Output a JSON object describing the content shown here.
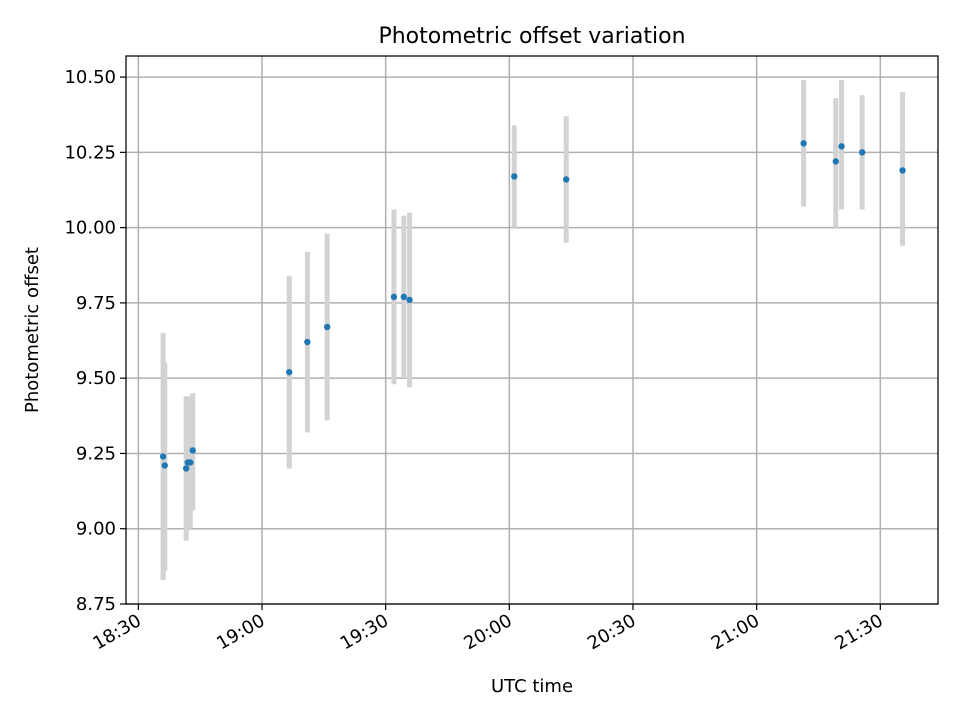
{
  "chart_data": {
    "type": "scatter",
    "title": "Photometric offset variation",
    "xlabel": "UTC time",
    "ylabel": "Photometric offset",
    "x_tick_labels": [
      "18:30",
      "19:00",
      "19:30",
      "20:00",
      "20:30",
      "21:00",
      "21:30"
    ],
    "y_tick_labels": [
      "8.75",
      "9.00",
      "9.25",
      "9.50",
      "9.75",
      "10.00",
      "10.25",
      "10.50"
    ],
    "xlim": [
      "18:27:00",
      "21:44:00"
    ],
    "ylim": [
      8.75,
      10.57
    ],
    "grid": true,
    "colors": {
      "points": "#1f77b4",
      "error_bars": "#d3d3d3",
      "grid": "#b0b0b0"
    },
    "points": [
      {
        "time": "18:36:00",
        "y": 9.24,
        "err_low": 8.83,
        "err_high": 9.65
      },
      {
        "time": "18:36:24",
        "y": 9.21,
        "err_low": 8.86,
        "err_high": 9.55
      },
      {
        "time": "18:41:36",
        "y": 9.2,
        "err_low": 8.96,
        "err_high": 9.44
      },
      {
        "time": "18:42:00",
        "y": 9.22,
        "err_low": 9.01,
        "err_high": 9.44
      },
      {
        "time": "18:42:36",
        "y": 9.22,
        "err_low": 9.0,
        "err_high": 9.44
      },
      {
        "time": "18:43:12",
        "y": 9.26,
        "err_low": 9.06,
        "err_high": 9.45
      },
      {
        "time": "19:06:36",
        "y": 9.52,
        "err_low": 9.2,
        "err_high": 9.84
      },
      {
        "time": "19:11:00",
        "y": 9.62,
        "err_low": 9.32,
        "err_high": 9.92
      },
      {
        "time": "19:15:48",
        "y": 9.67,
        "err_low": 9.36,
        "err_high": 9.98
      },
      {
        "time": "19:32:00",
        "y": 9.77,
        "err_low": 9.48,
        "err_high": 10.06
      },
      {
        "time": "19:34:24",
        "y": 9.77,
        "err_low": 9.5,
        "err_high": 10.04
      },
      {
        "time": "19:35:48",
        "y": 9.76,
        "err_low": 9.47,
        "err_high": 10.05
      },
      {
        "time": "20:01:12",
        "y": 10.17,
        "err_low": 10.0,
        "err_high": 10.34
      },
      {
        "time": "20:13:48",
        "y": 10.16,
        "err_low": 9.95,
        "err_high": 10.37
      },
      {
        "time": "21:11:24",
        "y": 10.28,
        "err_low": 10.07,
        "err_high": 10.49
      },
      {
        "time": "21:19:12",
        "y": 10.22,
        "err_low": 10.0,
        "err_high": 10.43
      },
      {
        "time": "21:20:36",
        "y": 10.27,
        "err_low": 10.06,
        "err_high": 10.49
      },
      {
        "time": "21:25:36",
        "y": 10.25,
        "err_low": 10.06,
        "err_high": 10.44
      },
      {
        "time": "21:35:24",
        "y": 10.19,
        "err_low": 9.94,
        "err_high": 10.45
      }
    ]
  }
}
